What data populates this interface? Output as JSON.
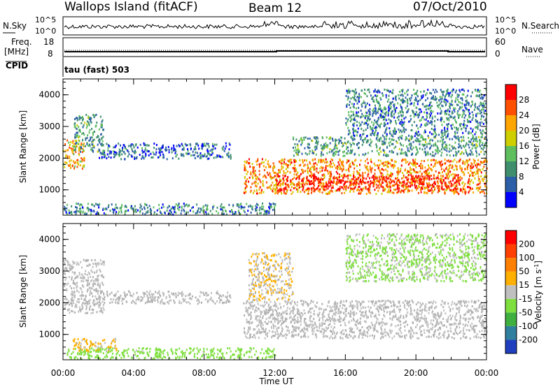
{
  "header": {
    "station": "Wallops Island (fitACF)",
    "beam": "Beam 12",
    "date": "07/Oct/2010"
  },
  "strip": {
    "nsky_label": "N.Sky",
    "nsearch_label": "N.Search",
    "sky_ticks": [
      "10^5",
      "10^0"
    ],
    "search_ticks": [
      "10^5",
      "10^0"
    ],
    "freq_label_line1": "Freq.",
    "freq_label_line2": "[MHz]",
    "freq_ticks": [
      "18",
      "8"
    ],
    "nave_label": "Nave",
    "nave_ticks": [
      "60",
      "0"
    ],
    "cpid_label": "CPID",
    "cpid_value": "tau (fast) 503"
  },
  "colors": {
    "power_scale": [
      "#0000ff",
      "#2c5fa8",
      "#3f8f6f",
      "#5fbf5f",
      "#cfcf00",
      "#ffa500",
      "#ff5000",
      "#ff0000"
    ],
    "velocity_scale": [
      "#1f3fbf",
      "#2f7f9f",
      "#3faf3f",
      "#7fdf3f",
      "#c0c0c0",
      "#ffb000",
      "#ff8000",
      "#ff4000",
      "#ff0000"
    ],
    "ground_scatter": "#b0b0b0"
  },
  "chart_data": [
    {
      "type": "heatmap",
      "name": "power_panel",
      "ylabel": "Slant Range [km]",
      "xlabel": "Time UT",
      "xticks": [
        "00:00",
        "04:00",
        "08:00",
        "12:00",
        "16:00",
        "20:00",
        "00:00"
      ],
      "yticks": [
        "1000",
        "2000",
        "3000",
        "4000"
      ],
      "ylim": [
        200,
        4500
      ],
      "x_hours": [
        0,
        24
      ],
      "colorbar": {
        "label": "Power [dB]",
        "ticks": [
          "4",
          "8",
          "12",
          "16",
          "20",
          "24",
          "28"
        ],
        "range": [
          0,
          30
        ]
      },
      "echo_regions": [
        {
          "t": [
            0.0,
            1.2
          ],
          "range_km": [
            1700,
            2600
          ],
          "power_db": 20
        },
        {
          "t": [
            0.6,
            2.3
          ],
          "range_km": [
            2200,
            3400
          ],
          "power_db": 10
        },
        {
          "t": [
            2.0,
            9.5
          ],
          "range_km": [
            2000,
            2500
          ],
          "power_db": 6
        },
        {
          "t": [
            0.0,
            12.0
          ],
          "range_km": [
            250,
            600
          ],
          "power_db": 8
        },
        {
          "t": [
            10.2,
            24.0
          ],
          "range_km": [
            900,
            2000
          ],
          "power_db": 22
        },
        {
          "t": [
            12.0,
            22.5
          ],
          "range_km": [
            1000,
            1500
          ],
          "power_db": 28
        },
        {
          "t": [
            13.0,
            24.0
          ],
          "range_km": [
            2100,
            2700
          ],
          "power_db": 10
        },
        {
          "t": [
            16.0,
            24.0
          ],
          "range_km": [
            2700,
            4200
          ],
          "power_db": 8
        }
      ]
    },
    {
      "type": "heatmap",
      "name": "velocity_panel",
      "ylabel": "Slant Range [km]",
      "xlabel": "Time UT",
      "xticks": [
        "00:00",
        "04:00",
        "08:00",
        "12:00",
        "16:00",
        "20:00",
        "00:00"
      ],
      "yticks": [
        "1000",
        "2000",
        "3000",
        "4000"
      ],
      "ylim": [
        200,
        4500
      ],
      "x_hours": [
        0,
        24
      ],
      "colorbar": {
        "label": "Velocity [m s^-1]",
        "ticks": [
          "200",
          "100",
          "50",
          "15",
          "-15",
          "-50",
          "-100",
          "-200"
        ],
        "range": [
          -250,
          250
        ]
      },
      "echo_regions": [
        {
          "t": [
            0.0,
            2.3
          ],
          "range_km": [
            1700,
            3400
          ],
          "velocity": 0
        },
        {
          "t": [
            0.0,
            12.0
          ],
          "range_km": [
            250,
            600
          ],
          "velocity": -60
        },
        {
          "t": [
            0.5,
            3.0
          ],
          "range_km": [
            500,
            900
          ],
          "velocity": 40
        },
        {
          "t": [
            2.0,
            9.5
          ],
          "range_km": [
            2000,
            2400
          ],
          "velocity": 0
        },
        {
          "t": [
            10.2,
            24.0
          ],
          "range_km": [
            900,
            2100
          ],
          "velocity": 0
        },
        {
          "t": [
            10.5,
            13.0
          ],
          "range_km": [
            2100,
            3600
          ],
          "velocity": 30
        },
        {
          "t": [
            16.0,
            24.0
          ],
          "range_km": [
            2700,
            4200
          ],
          "velocity": -40
        }
      ]
    }
  ]
}
